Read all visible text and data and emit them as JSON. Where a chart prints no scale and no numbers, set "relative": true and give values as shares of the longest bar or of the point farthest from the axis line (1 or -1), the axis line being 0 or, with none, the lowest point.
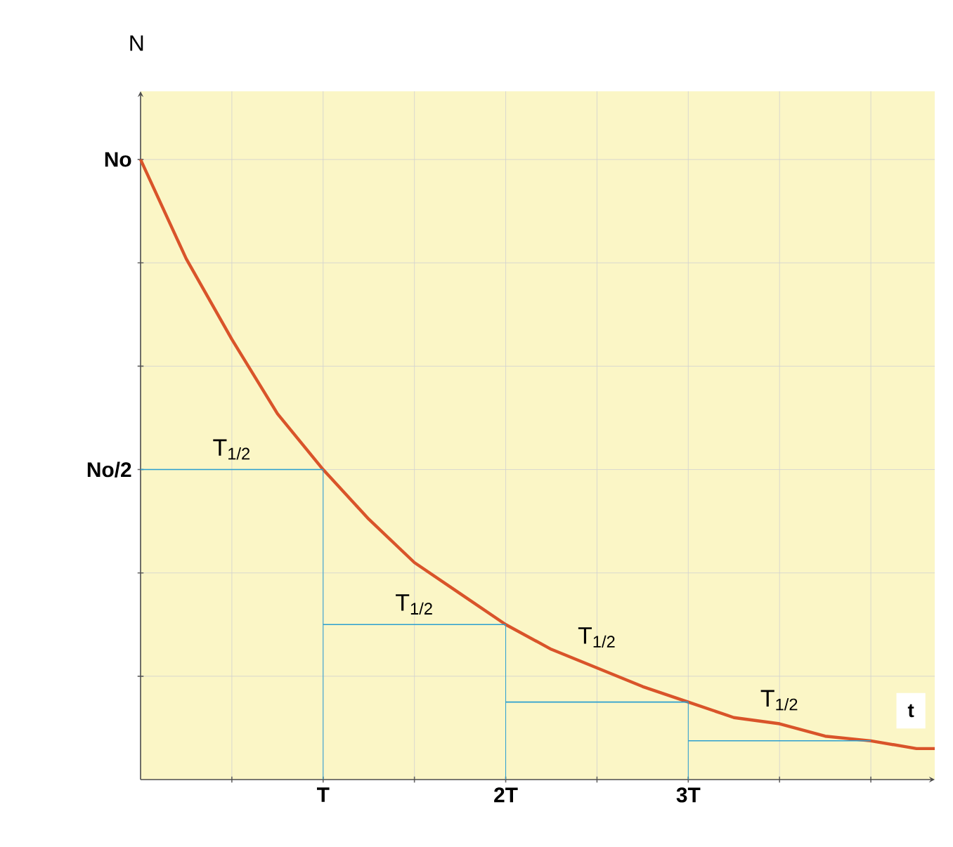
{
  "chart_data": {
    "type": "line",
    "relative": true,
    "xlabel": "t",
    "ylabel": "N",
    "x": [
      0,
      0.25,
      0.5,
      0.75,
      1,
      1.25,
      1.5,
      1.75,
      2,
      2.25,
      2.5,
      2.75,
      3,
      3.25,
      3.5,
      3.75,
      4,
      4.25,
      4.35
    ],
    "series": [
      {
        "color": "#d9542a",
        "values": [
          1,
          0.84,
          0.71,
          0.59,
          0.5,
          0.42,
          0.35,
          0.3,
          0.25,
          0.21,
          0.18,
          0.15,
          0.125,
          0.1,
          0.09,
          0.07,
          0.0625,
          0.05,
          0.05
        ]
      },
      {
        "color": "#2a9fd0",
        "x": [
          0,
          1
        ],
        "values": [
          0.5,
          0.5
        ]
      },
      {
        "color": "#2a9fd0",
        "x": [
          1,
          1
        ],
        "values": [
          0,
          0.5
        ]
      },
      {
        "color": "#2a9fd0",
        "x": [
          1,
          2
        ],
        "values": [
          0.25,
          0.25
        ]
      },
      {
        "color": "#2a9fd0",
        "x": [
          2,
          2
        ],
        "values": [
          0,
          0.25
        ]
      },
      {
        "color": "#2a9fd0",
        "x": [
          2,
          3
        ],
        "values": [
          0.125,
          0.125
        ]
      },
      {
        "color": "#2a9fd0",
        "x": [
          3,
          3
        ],
        "values": [
          0,
          0.125
        ]
      },
      {
        "color": "#2a9fd0",
        "x": [
          3,
          4
        ],
        "values": [
          0.0625,
          0.0625
        ]
      }
    ],
    "xlim": [
      0,
      4.35
    ],
    "xticks": [
      {
        "value": 0.5,
        "label": null
      },
      {
        "value": 1,
        "label": "T"
      },
      {
        "value": 1.5,
        "label": null
      },
      {
        "value": 2,
        "label": "2T"
      },
      {
        "value": 2.5,
        "label": null
      },
      {
        "value": 3,
        "label": "3T"
      },
      {
        "value": 3.5,
        "label": null
      },
      {
        "value": 4,
        "label": null
      }
    ],
    "grid": true,
    "marker": "none",
    "line_style": "solid",
    "annotations": [
      {
        "text": "No",
        "x": 0,
        "y": 1
      },
      {
        "text": "No/2",
        "x": 0,
        "y": 0.5
      },
      {
        "text": "T$_{1/2}$",
        "x": 0.5,
        "y": 0.5
      },
      {
        "text": "T$_{1/2}$",
        "x": 1.5,
        "y": 0.25
      },
      {
        "text": "T$_{1/2}$",
        "x": 2.5,
        "y": 0.125
      },
      {
        "text": "T$_{1/2}$",
        "x": 3.5,
        "y": 0.0625
      }
    ]
  }
}
